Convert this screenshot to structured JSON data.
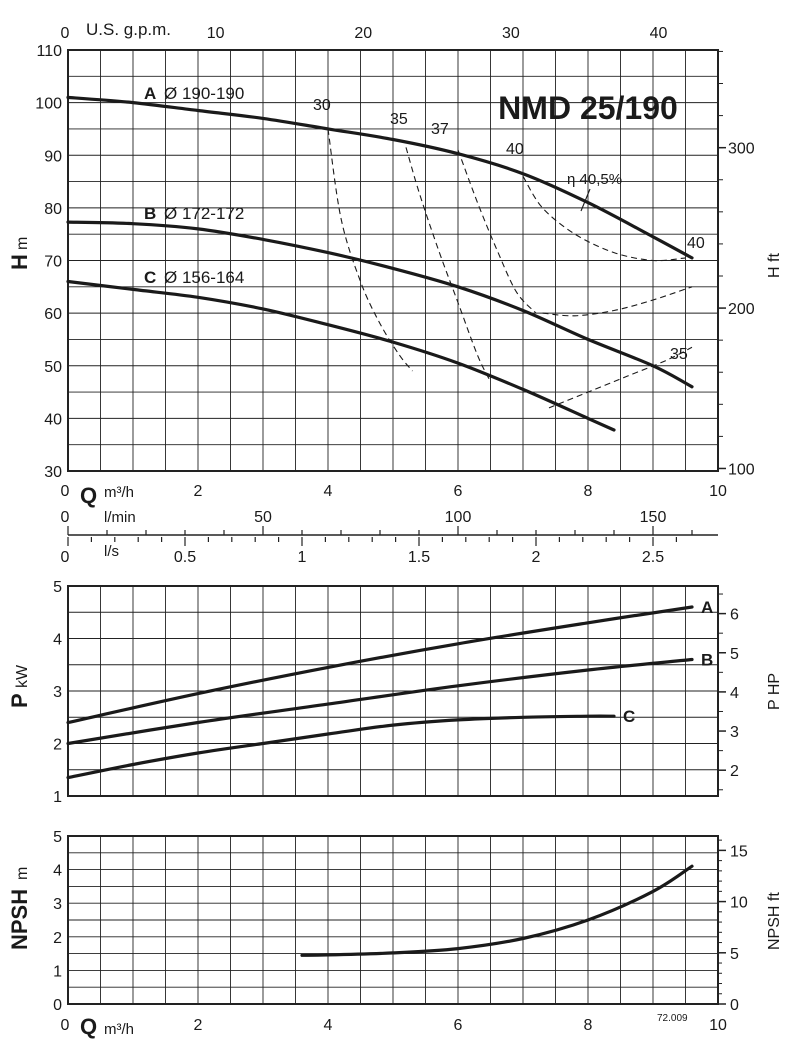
{
  "model": "NMD 25/190",
  "footer_code": "72.009",
  "colors": {
    "grid": "#222222",
    "curve": "#1a1a1a",
    "background": "#ffffff"
  },
  "head_chart": {
    "y_label_main": "H",
    "y_label_unit": "m",
    "y_right_label": "H ft",
    "xlim": [
      0,
      10
    ],
    "ylim": [
      30,
      110
    ],
    "y_ticks": [
      30,
      40,
      50,
      60,
      70,
      80,
      90,
      100,
      110
    ],
    "x_ticks": [
      0,
      2,
      4,
      6,
      8,
      10
    ],
    "y_ft_ticks": [
      100,
      200,
      300
    ],
    "top_axis_label": "U.S. g.p.m.",
    "top_axis_ticks": [
      0,
      10,
      20,
      30,
      40
    ],
    "x_label_main": "Q",
    "x_label_unit": "m³/h",
    "efficiency_label": "η 40,5%"
  },
  "flow_axes": {
    "lmin_label": "l/min",
    "lmin_ticks": [
      0,
      50,
      100,
      150
    ],
    "ls_label": "l/s",
    "ls_ticks": [
      "0",
      "0.5",
      "1",
      "1.5",
      "2",
      "2.5"
    ]
  },
  "power_chart": {
    "y_label_main": "P",
    "y_label_unit": "kW",
    "y_right_label": "P HP",
    "ylim": [
      1,
      5
    ],
    "y_ticks": [
      1,
      2,
      3,
      4,
      5
    ],
    "y_hp_ticks": [
      2,
      3,
      4,
      5,
      6
    ]
  },
  "npsh_chart": {
    "y_label_main": "NPSH",
    "y_label_unit": "m",
    "y_right_label": "NPSH ft",
    "ylim": [
      0,
      5
    ],
    "y_ticks": [
      0,
      1,
      2,
      3,
      4,
      5
    ],
    "y_ft_ticks": [
      0,
      5,
      10,
      15
    ],
    "x_ticks": [
      0,
      2,
      4,
      6,
      8,
      10
    ],
    "x_label_main": "Q",
    "x_label_unit": "m³/h"
  },
  "chart_data": [
    {
      "type": "line",
      "title": "NMD 25/190",
      "xlabel": "Q m³/h",
      "ylabel": "H m",
      "xlim": [
        0,
        10
      ],
      "ylim": [
        30,
        110
      ],
      "series": [
        {
          "name": "A Ø 190-190",
          "x": [
            0,
            1,
            2,
            3,
            4,
            5,
            6,
            7,
            8,
            9,
            9.6
          ],
          "y": [
            101,
            100,
            98.5,
            97,
            95,
            93,
            90.3,
            86.5,
            81,
            74.5,
            70.5
          ]
        },
        {
          "name": "B Ø 172-172",
          "x": [
            0,
            1,
            2,
            3,
            4,
            5,
            6,
            7,
            8,
            9,
            9.6
          ],
          "y": [
            77.3,
            77,
            76,
            74,
            71.5,
            68.5,
            65,
            60.5,
            55,
            50,
            46
          ]
        },
        {
          "name": "C Ø 156-164",
          "x": [
            0,
            1,
            2,
            3,
            4,
            5,
            6,
            7,
            8,
            8.4
          ],
          "y": [
            66,
            64.5,
            63,
            60.8,
            57.8,
            54.5,
            50.5,
            45.5,
            40,
            37.8
          ]
        }
      ],
      "efficiency_curves": [
        {
          "label": "30",
          "x": [
            4.0,
            4.2,
            4.5,
            4.8,
            5.1,
            5.3
          ],
          "y": [
            95,
            78,
            66,
            58,
            52,
            49
          ]
        },
        {
          "label": "35",
          "x": [
            5.2,
            5.4,
            5.7,
            6.0,
            6.3,
            6.5
          ],
          "y": [
            91.5,
            83,
            72,
            62,
            52,
            47
          ]
        },
        {
          "label": "37",
          "x": [
            6.0,
            6.3,
            6.6,
            6.9,
            7.2
          ],
          "y": [
            91,
            81,
            72,
            64,
            60
          ]
        },
        {
          "label": "40",
          "x": [
            7.0,
            7.3,
            7.8,
            8.4,
            9.0,
            9.5
          ],
          "y": [
            86,
            80,
            75,
            71.5,
            70,
            70.5
          ]
        },
        {
          "label": "40",
          "x": [
            7.3,
            7.8,
            8.4,
            9.0,
            9.6
          ],
          "y": [
            60,
            59.5,
            60.5,
            62.5,
            65
          ]
        },
        {
          "label": "35",
          "x": [
            7.4,
            8.0,
            8.6,
            9.2,
            9.6
          ],
          "y": [
            42,
            45,
            48,
            51,
            53.5
          ]
        }
      ]
    },
    {
      "type": "line",
      "xlabel": "Q m³/h",
      "ylabel": "P kW",
      "xlim": [
        0,
        10
      ],
      "ylim": [
        1,
        5
      ],
      "series": [
        {
          "name": "A",
          "x": [
            0,
            2,
            4,
            6,
            8,
            9.6
          ],
          "y": [
            2.4,
            2.95,
            3.45,
            3.9,
            4.3,
            4.6
          ]
        },
        {
          "name": "B",
          "x": [
            0,
            2,
            4,
            6,
            8,
            9.6
          ],
          "y": [
            2.0,
            2.4,
            2.75,
            3.1,
            3.4,
            3.6
          ]
        },
        {
          "name": "C",
          "x": [
            0,
            1,
            2,
            3,
            4,
            5,
            6,
            7,
            8,
            8.4
          ],
          "y": [
            1.35,
            1.6,
            1.82,
            2.0,
            2.18,
            2.35,
            2.45,
            2.5,
            2.52,
            2.52
          ]
        }
      ]
    },
    {
      "type": "line",
      "xlabel": "Q m³/h",
      "ylabel": "NPSH m",
      "xlim": [
        0,
        10
      ],
      "ylim": [
        0,
        5
      ],
      "series": [
        {
          "x": [
            3.6,
            4,
            5,
            6,
            7,
            8,
            9,
            9.6
          ],
          "y": [
            1.45,
            1.46,
            1.52,
            1.65,
            1.95,
            2.5,
            3.35,
            4.1
          ]
        }
      ]
    }
  ]
}
